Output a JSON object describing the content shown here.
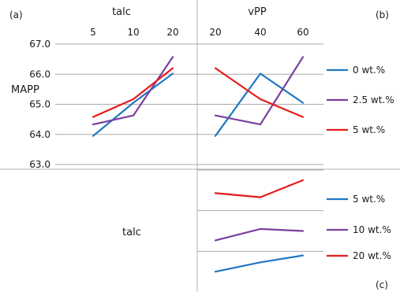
{
  "panels": {
    "a_label": "(a)",
    "b_label": "(b)",
    "c_label": "(c)",
    "talc_title": "talc",
    "vpp_title": "vPP",
    "ylabel": "MAPP",
    "lower_left_label": "talc"
  },
  "chart_data": [
    {
      "panel": "(a)",
      "type": "line",
      "xlabel": "talc",
      "ylabel": "MAPP",
      "categories": [
        "5",
        "10",
        "20"
      ],
      "ylim": [
        63.0,
        67.0
      ],
      "yticks": [
        "63.0",
        "64.0",
        "65.0",
        "66.0",
        "67.0"
      ],
      "grid": true,
      "series": [
        {
          "name": "0 wt.%",
          "color": "#1f77c4",
          "values": [
            63.95,
            65.05,
            66.02
          ]
        },
        {
          "name": "2.5 wt.%",
          "color": "#7b3f9e",
          "values": [
            64.33,
            64.63,
            66.57
          ]
        },
        {
          "name": "5 wt.%",
          "color": "#e31c1c",
          "values": [
            64.58,
            65.17,
            66.2
          ]
        }
      ]
    },
    {
      "panel": "(b)",
      "type": "line",
      "xlabel": "vPP",
      "categories": [
        "20",
        "40",
        "60"
      ],
      "ylim": [
        63.0,
        67.0
      ],
      "grid": true,
      "legend": "right",
      "series": [
        {
          "name": "0 wt.%",
          "color": "#1f77c4",
          "values": [
            63.95,
            66.02,
            65.05
          ]
        },
        {
          "name": "2.5 wt.%",
          "color": "#7b3f9e",
          "values": [
            64.63,
            64.33,
            66.57
          ]
        },
        {
          "name": "5 wt.%",
          "color": "#e31c1c",
          "values": [
            66.2,
            65.17,
            64.58
          ]
        }
      ]
    },
    {
      "panel": "(c)",
      "type": "line",
      "legend": "right",
      "grid": true,
      "series": [
        {
          "name": "5 wt.%",
          "color": "#1f77c4",
          "values": [
            0.5,
            0.73,
            0.9
          ]
        },
        {
          "name": "10 wt.%",
          "color": "#7b3f9e",
          "values": [
            1.27,
            1.55,
            1.5
          ]
        },
        {
          "name": "20 wt.%",
          "color": "#e31c1c",
          "values": [
            2.43,
            2.33,
            2.75
          ]
        }
      ]
    }
  ]
}
